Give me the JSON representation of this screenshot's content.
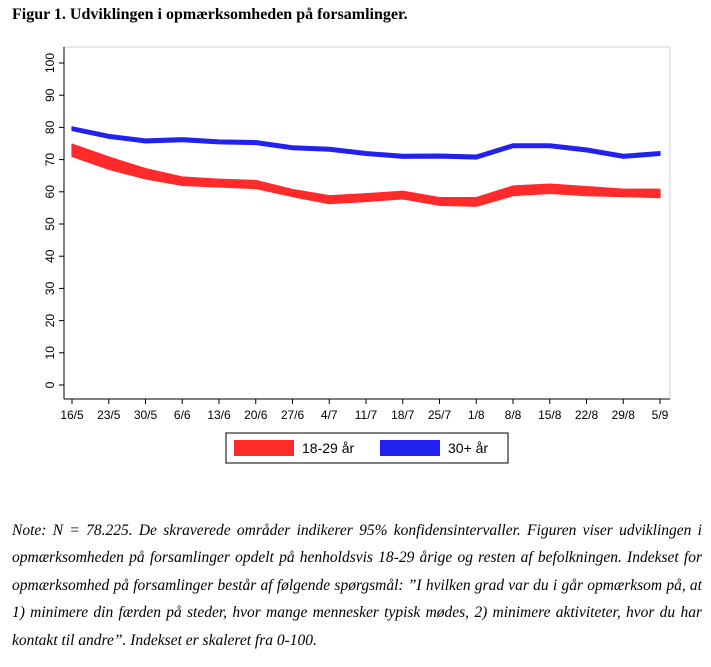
{
  "figure": {
    "title": "Figur 1. Udviklingen i opmærksomheden på forsamlinger."
  },
  "chart_data": {
    "type": "line",
    "title": "",
    "xlabel": "",
    "ylabel": "",
    "categories": [
      "16/5",
      "23/5",
      "30/5",
      "6/6",
      "13/6",
      "20/6",
      "27/6",
      "4/7",
      "11/7",
      "18/7",
      "25/7",
      "1/8",
      "8/8",
      "15/8",
      "22/8",
      "29/8",
      "5/9"
    ],
    "ylim": [
      0,
      100
    ],
    "yticks": [
      0,
      10,
      20,
      30,
      40,
      50,
      60,
      70,
      80,
      90,
      100
    ],
    "grid": false,
    "legend_position": "bottom",
    "series": [
      {
        "name": "18-29 år",
        "color": "#ff2a2a",
        "lower": [
          71,
          67,
          64,
          62,
          61.5,
          61,
          58.5,
          56.3,
          57,
          57.8,
          55.8,
          55.5,
          58.8,
          59.5,
          58.8,
          58.5,
          58.2
        ],
        "upper": [
          74.8,
          70.8,
          67.2,
          64.6,
          63.9,
          63.5,
          60.7,
          58.8,
          59.4,
          60.2,
          58.2,
          58.2,
          61.8,
          62.4,
          61.6,
          60.8,
          60.8
        ]
      },
      {
        "name": "30+ år",
        "color": "#2222ee",
        "lower": [
          79,
          76.6,
          75.2,
          75.6,
          74.9,
          74.7,
          73.1,
          72.6,
          71.3,
          70.4,
          70.5,
          70.2,
          73.7,
          73.7,
          72.4,
          70.4,
          71.3
        ],
        "upper": [
          80.2,
          77.8,
          76.4,
          76.8,
          76.1,
          75.9,
          74.3,
          73.8,
          72.5,
          71.6,
          71.7,
          71.4,
          74.9,
          74.9,
          73.6,
          71.6,
          72.5
        ]
      }
    ]
  },
  "note": {
    "text": "Note: N = 78.225. De skraverede områder indikerer 95% konfidensintervaller. Figuren viser udviklingen i opmærksomheden på forsamlinger opdelt på henholdsvis 18-29 årige og resten af befolkningen. Indekset for opmærksomhed på forsamlinger består af følgende spørgsmål: ”I hvilken grad var du i går opmærksom på, at 1) minimere din færden på steder, hvor mange mennesker typisk mødes, 2) minimere aktiviteter, hvor du har kontakt til andre”. Indekset er skaleret fra 0-100."
  }
}
